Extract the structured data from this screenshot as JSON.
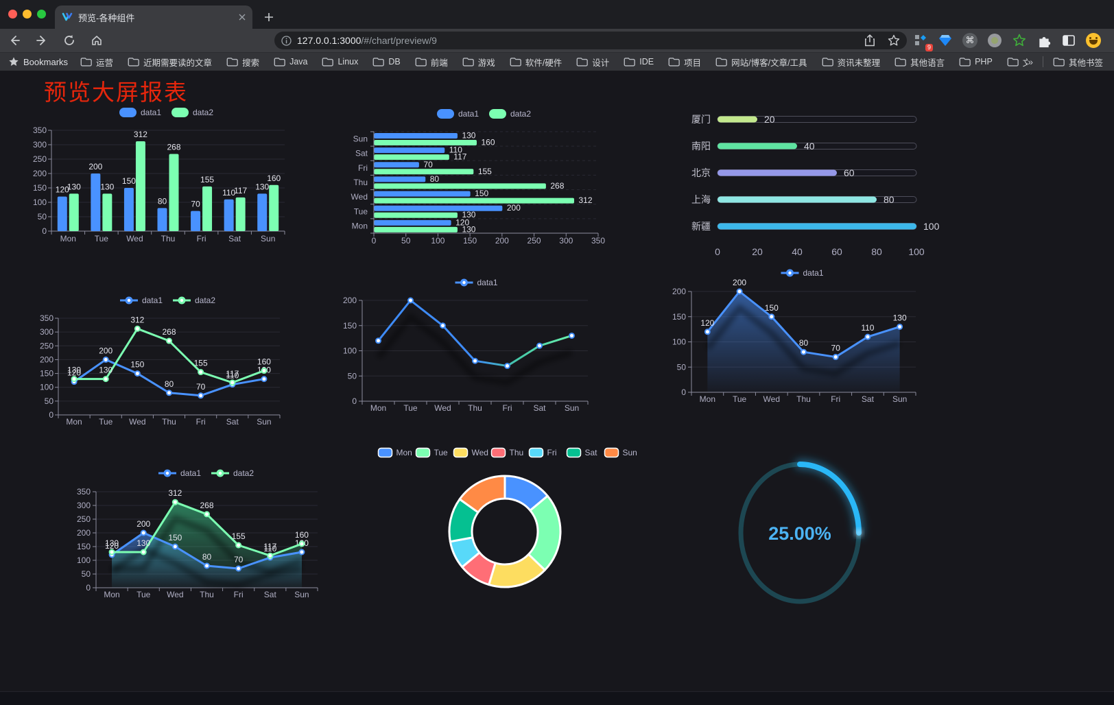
{
  "browser": {
    "tab_title": "预览-各种组件",
    "url_host": "127.0.0.1:3000",
    "url_rest": "/#/chart/preview/9",
    "bookmarks_label": "Bookmarks",
    "bookmarks": [
      "运营",
      "近期需要读的文章",
      "搜索",
      "Java",
      "Linux",
      "DB",
      "前端",
      "游戏",
      "软件/硬件",
      "设计",
      "IDE",
      "项目",
      "网站/博客/文章/工具",
      "资讯未整理",
      "其他语言",
      "PHP",
      "文件服务器"
    ],
    "overflow_chevron": "»",
    "other_bookmarks": "其他书签",
    "extension_badge": "9"
  },
  "page": {
    "title": "预览大屏报表",
    "title_color": "#e5260c",
    "background": "#17171c"
  },
  "chart_data": [
    {
      "id": "bar-vertical",
      "type": "bar",
      "categories": [
        "Mon",
        "Tue",
        "Wed",
        "Thu",
        "Fri",
        "Sat",
        "Sun"
      ],
      "series": [
        {
          "name": "data1",
          "color": "#4992ff",
          "values": [
            120,
            200,
            150,
            80,
            70,
            110,
            130
          ]
        },
        {
          "name": "data2",
          "color": "#7cffb2",
          "values": [
            130,
            130,
            312,
            268,
            155,
            117,
            160
          ]
        }
      ],
      "ylim": [
        0,
        350
      ],
      "ytick_step": 50,
      "grid": true,
      "legend_position": "top"
    },
    {
      "id": "bar-horizontal",
      "type": "bar",
      "orientation": "horizontal",
      "categories": [
        "Mon",
        "Tue",
        "Wed",
        "Thu",
        "Fri",
        "Sat",
        "Sun"
      ],
      "series": [
        {
          "name": "data1",
          "color": "#4992ff",
          "values": [
            120,
            200,
            150,
            80,
            70,
            110,
            130
          ]
        },
        {
          "name": "data2",
          "color": "#7cffb2",
          "values": [
            130,
            130,
            312,
            268,
            155,
            117,
            160
          ]
        }
      ],
      "xlim": [
        0,
        350
      ],
      "xtick_step": 50,
      "legend_position": "top"
    },
    {
      "id": "progress-bars",
      "type": "bar",
      "orientation": "horizontal-capsule",
      "items": [
        {
          "label": "厦门",
          "value": 20,
          "color": "#c3e88d"
        },
        {
          "label": "南阳",
          "value": 40,
          "color": "#5fe3a1"
        },
        {
          "label": "北京",
          "value": 60,
          "color": "#9598e8"
        },
        {
          "label": "上海",
          "value": 80,
          "color": "#8ee6e2"
        },
        {
          "label": "新疆",
          "value": 100,
          "color": "#3db8ea"
        }
      ],
      "xlim": [
        0,
        100
      ],
      "xticks": [
        0,
        20,
        40,
        60,
        80,
        100
      ]
    },
    {
      "id": "line-two-series",
      "type": "line",
      "categories": [
        "Mon",
        "Tue",
        "Wed",
        "Thu",
        "Fri",
        "Sat",
        "Sun"
      ],
      "series": [
        {
          "name": "data1",
          "color": "#4992ff",
          "values": [
            120,
            200,
            150,
            80,
            70,
            110,
            130
          ]
        },
        {
          "name": "data2",
          "color": "#7cffb2",
          "values": [
            130,
            130,
            312,
            268,
            155,
            117,
            160
          ]
        }
      ],
      "ylim": [
        0,
        350
      ],
      "ytick_step": 50,
      "point_labels": true,
      "legend_position": "top"
    },
    {
      "id": "line-gradient",
      "type": "line",
      "categories": [
        "Mon",
        "Tue",
        "Wed",
        "Thu",
        "Fri",
        "Sat",
        "Sun"
      ],
      "series": [
        {
          "name": "data1",
          "color": "#4992ff",
          "gradient": [
            "#3e8bf7",
            "#3e8bf7",
            "#46c9a8",
            "#69f0ad"
          ],
          "values": [
            120,
            200,
            150,
            80,
            70,
            110,
            130
          ]
        }
      ],
      "ylim": [
        0,
        200
      ],
      "ytick_step": 50,
      "point_labels": false,
      "shadow": true,
      "legend_position": "top"
    },
    {
      "id": "area-single",
      "type": "area",
      "categories": [
        "Mon",
        "Tue",
        "Wed",
        "Thu",
        "Fri",
        "Sat",
        "Sun"
      ],
      "series": [
        {
          "name": "data1",
          "color": "#4992ff",
          "area_color": "#4992ff",
          "values": [
            120,
            200,
            150,
            80,
            70,
            110,
            130
          ]
        }
      ],
      "ylim": [
        0,
        200
      ],
      "ytick_step": 50,
      "point_labels": true,
      "shadow": true,
      "legend_position": "top"
    },
    {
      "id": "area-two-series",
      "type": "area",
      "categories": [
        "Mon",
        "Tue",
        "Wed",
        "Thu",
        "Fri",
        "Sat",
        "Sun"
      ],
      "series": [
        {
          "name": "data1",
          "color": "#4992ff",
          "area_color": "#4992ff",
          "values": [
            120,
            200,
            150,
            80,
            70,
            110,
            130
          ]
        },
        {
          "name": "data2",
          "color": "#7cffb2",
          "area_color": "#3ecf8e",
          "values": [
            130,
            130,
            312,
            268,
            155,
            117,
            160
          ]
        }
      ],
      "ylim": [
        0,
        350
      ],
      "ytick_step": 50,
      "point_labels": true,
      "shadow": true,
      "legend_position": "top"
    },
    {
      "id": "donut",
      "type": "pie",
      "categories": [
        "Mon",
        "Tue",
        "Wed",
        "Thu",
        "Fri",
        "Sat",
        "Sun"
      ],
      "values": [
        120,
        200,
        150,
        80,
        70,
        110,
        130
      ],
      "colors": [
        "#4992ff",
        "#7cffb2",
        "#fddd60",
        "#ff6e76",
        "#58d9f9",
        "#05c091",
        "#ff8a45"
      ],
      "inner_radius": true,
      "border_color": "#ffffff",
      "legend_position": "top"
    },
    {
      "id": "gauge",
      "type": "gauge",
      "value": 25,
      "label": "25.00%",
      "color": "#2ab7f7",
      "track_color": "#1d4752",
      "text_color": "#4cb3f3"
    }
  ]
}
